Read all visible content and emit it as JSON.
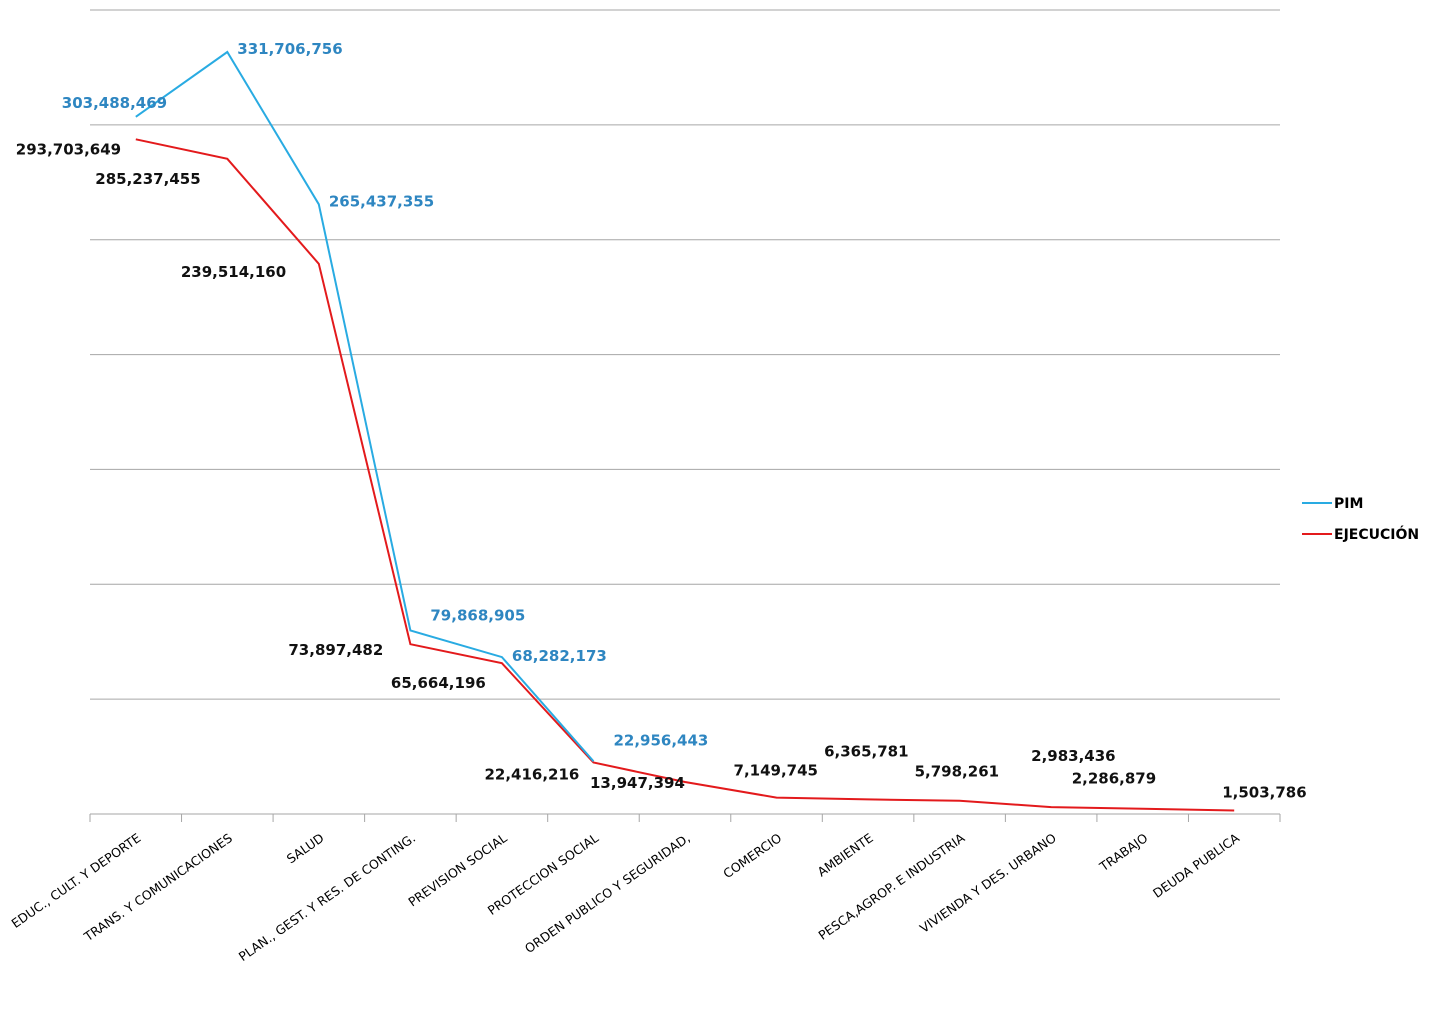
{
  "chart_data": {
    "type": "line",
    "categories": [
      "EDUC., CULT. Y DEPORTE",
      "TRANS. Y COMUNICACIONES",
      "SALUD",
      "PLAN., GEST. Y RES. DE CONTING.",
      "PREVISION SOCIAL",
      "PROTECCION SOCIAL",
      "ORDEN PUBLICO Y SEGURIDAD,",
      "COMERCIO",
      "AMBIENTE",
      "PESCA,AGROP. E INDUSTRIA",
      "VIVIENDA Y DES. URBANO",
      "TRABAJO",
      "DEUDA PUBLICA"
    ],
    "series": [
      {
        "name": "PIM",
        "color": "#29abe2",
        "label_color": "#2e86c1",
        "values": [
          303488469,
          331706756,
          265437355,
          79868905,
          68282173,
          22956443,
          null,
          null,
          null,
          null,
          null,
          null,
          null
        ],
        "labels": [
          "303,488,469",
          "331,706,756",
          "265,437,355",
          "79,868,905",
          "68,282,173",
          "22,956,443",
          "",
          "",
          "",
          "",
          "",
          "",
          ""
        ]
      },
      {
        "name": "EJECUCIÓN",
        "color": "#e31a1c",
        "label_color": "#111111",
        "values": [
          293703649,
          285237455,
          239514160,
          73897482,
          65664196,
          22416216,
          13947394,
          7149745,
          6365781,
          5798261,
          2983436,
          2286879,
          1503786
        ],
        "labels": [
          "293,703,649",
          "285,237,455",
          "239,514,160",
          "73,897,482",
          "65,664,196",
          "22,416,216",
          "13,947,394",
          "7,149,745",
          "6,365,781",
          "5,798,261",
          "2,983,436",
          "2,286,879",
          "1,503,786"
        ]
      }
    ],
    "ylim": [
      0,
      350000000
    ],
    "gridlines": [
      0,
      50000000,
      100000000,
      150000000,
      200000000,
      250000000,
      300000000,
      350000000
    ],
    "grid": true,
    "legend_position": "right"
  }
}
